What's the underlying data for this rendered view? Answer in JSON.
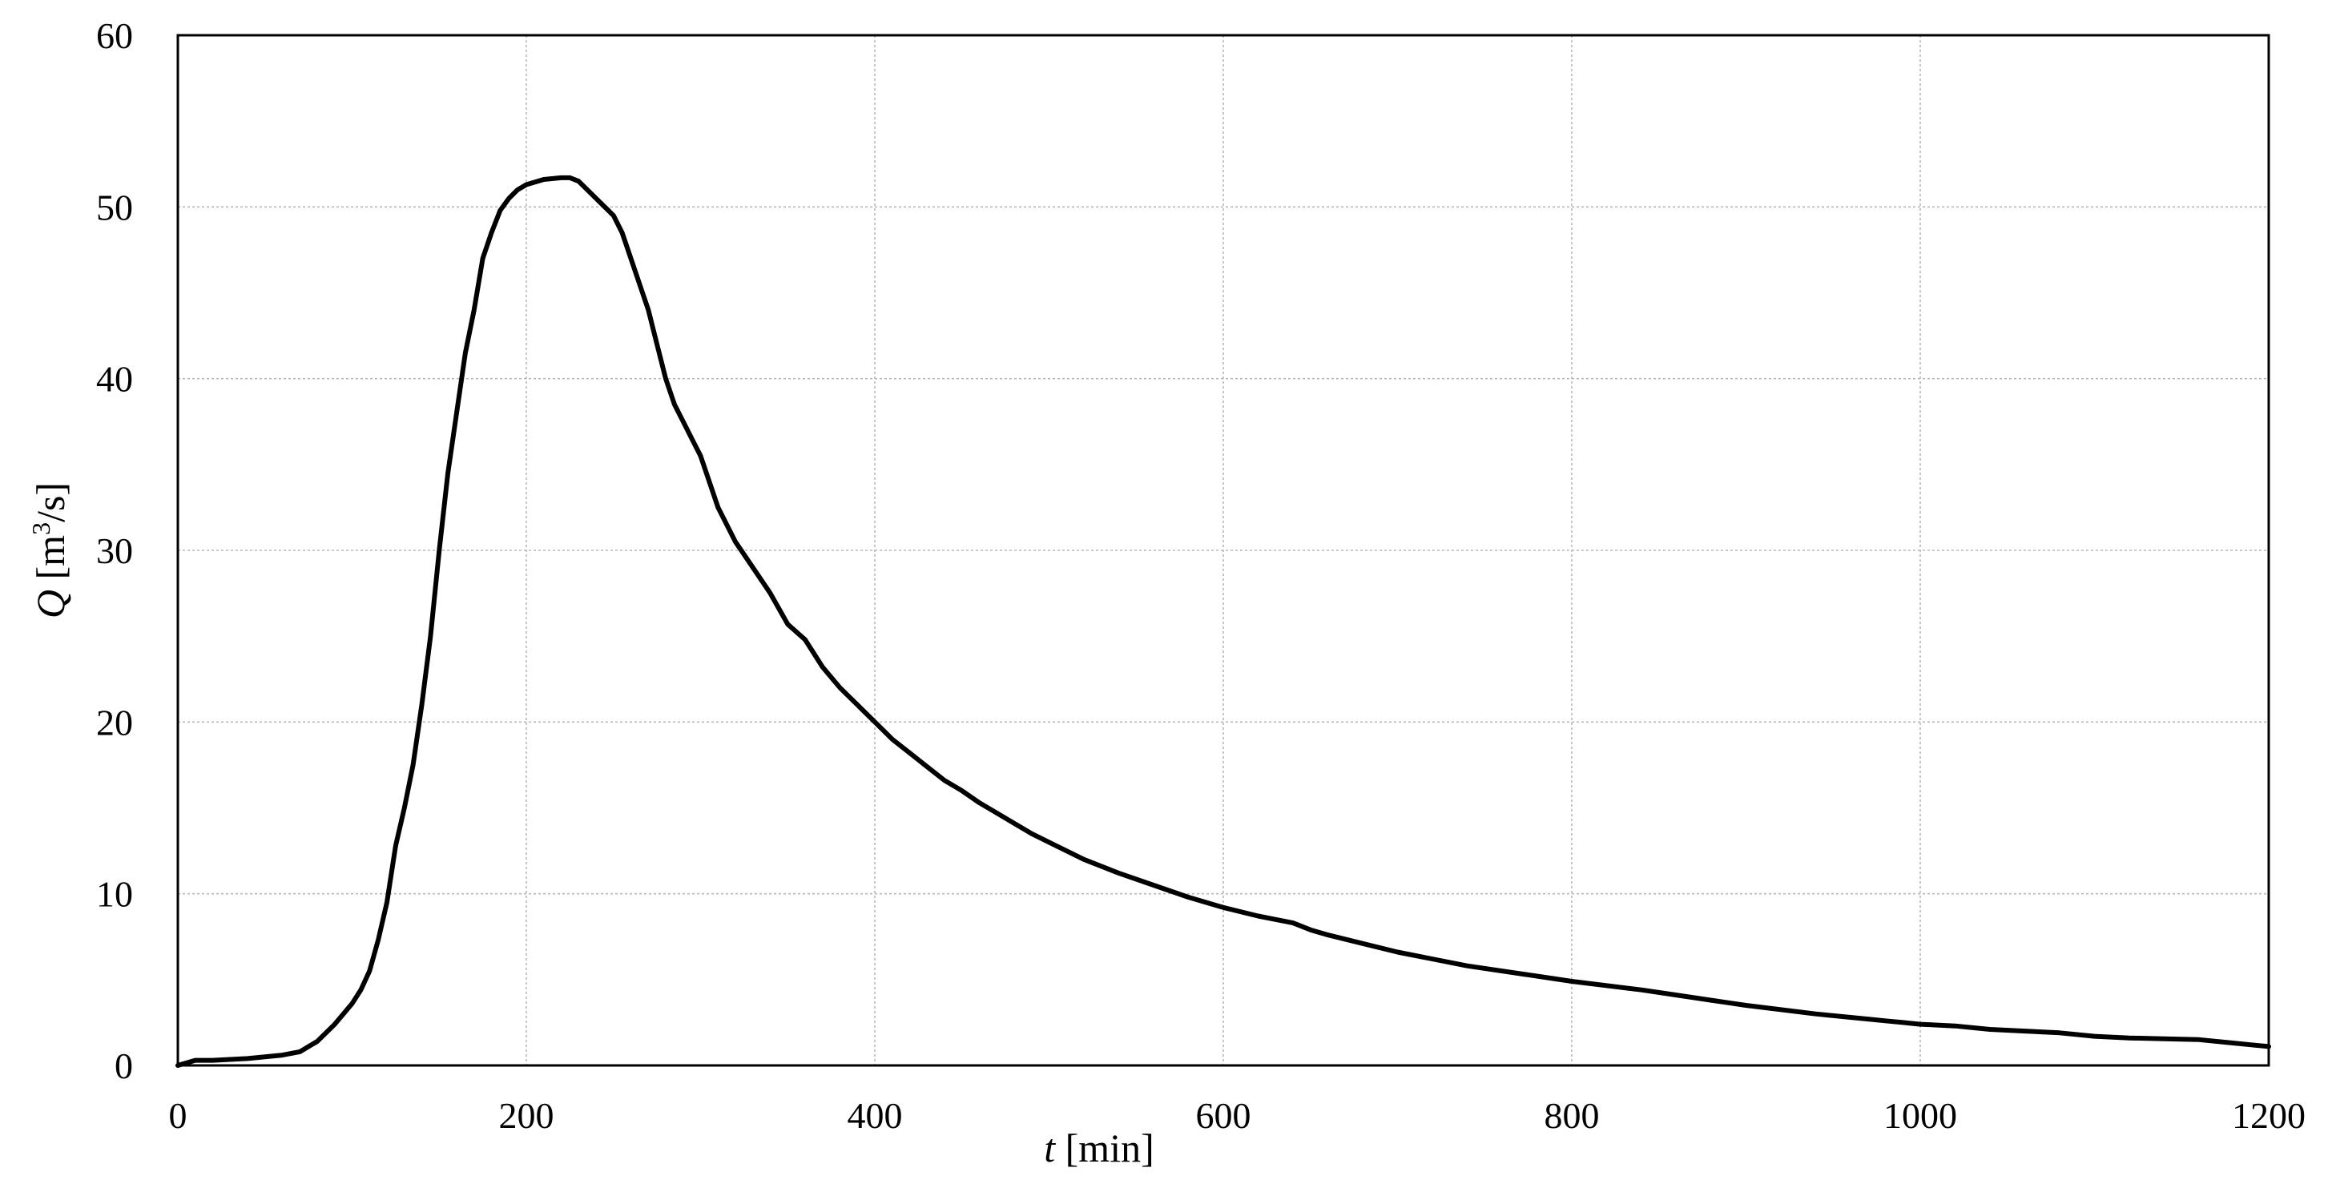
{
  "chart_data": {
    "type": "line",
    "xlabel": {
      "var": "t",
      "unit": " [min]"
    },
    "ylabel": {
      "var": "Q",
      "unit_pre": " [m",
      "unit_sup": "3",
      "unit_post": "/s]"
    },
    "xlim": [
      0,
      1200
    ],
    "ylim": [
      0,
      60
    ],
    "xticks": [
      0,
      200,
      400,
      600,
      800,
      1000,
      1200
    ],
    "yticks": [
      0,
      10,
      20,
      30,
      40,
      50,
      60
    ],
    "grid": true,
    "series": [
      {
        "x": [
          0,
          10,
          20,
          40,
          60,
          70,
          80,
          90,
          100,
          105,
          110,
          115,
          120,
          125,
          130,
          135,
          140,
          145,
          150,
          155,
          160,
          165,
          170,
          175,
          180,
          185,
          190,
          195,
          200,
          210,
          220,
          225,
          230,
          240,
          250,
          255,
          260,
          265,
          270,
          275,
          280,
          285,
          290,
          295,
          300,
          310,
          320,
          330,
          340,
          350,
          360,
          370,
          380,
          390,
          400,
          410,
          420,
          430,
          440,
          450,
          460,
          470,
          480,
          490,
          500,
          520,
          540,
          560,
          580,
          600,
          620,
          640,
          650,
          660,
          680,
          700,
          740,
          780,
          800,
          840,
          860,
          880,
          900,
          940,
          960,
          980,
          990,
          1000,
          1020,
          1040,
          1060,
          1080,
          1100,
          1120,
          1140,
          1160,
          1180,
          1190,
          1200
        ],
        "y": [
          0,
          0.3,
          0.3,
          0.4,
          0.6,
          0.8,
          1.4,
          2.4,
          3.6,
          4.4,
          5.5,
          7.3,
          9.5,
          12.8,
          15.0,
          17.5,
          21.0,
          25.0,
          30.0,
          34.5,
          38.0,
          41.5,
          44.0,
          47.0,
          48.5,
          49.8,
          50.5,
          51.0,
          51.3,
          51.6,
          51.7,
          51.7,
          51.5,
          50.5,
          49.5,
          48.5,
          47.0,
          45.5,
          44.0,
          42.0,
          40.0,
          38.5,
          37.5,
          36.5,
          35.5,
          32.5,
          30.5,
          29.0,
          27.5,
          25.7,
          24.8,
          23.2,
          22.0,
          21.0,
          20.0,
          19.0,
          18.2,
          17.4,
          16.6,
          16.0,
          15.3,
          14.7,
          14.1,
          13.5,
          13.0,
          12.0,
          11.2,
          10.5,
          9.8,
          9.2,
          8.7,
          8.3,
          7.9,
          7.6,
          7.1,
          6.6,
          5.8,
          5.2,
          4.9,
          4.4,
          4.1,
          3.8,
          3.5,
          3.0,
          2.8,
          2.6,
          2.5,
          2.4,
          2.3,
          2.1,
          2.0,
          1.9,
          1.7,
          1.6,
          1.55,
          1.5,
          1.3,
          1.2,
          1.1
        ]
      }
    ]
  }
}
